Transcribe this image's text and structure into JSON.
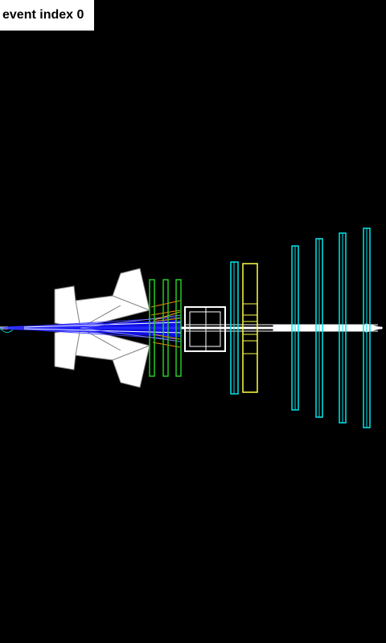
{
  "event_label": "event index 0",
  "colors": {
    "background": "#000000",
    "magnet": "#ffffff",
    "tracks_primary": "#1010ff",
    "tracks_secondary": "#ffffff",
    "trd_station": "#22cc22",
    "rich_detector": "#ffffff",
    "tof_wall": "#00e5ee",
    "ecal": "#ffff44",
    "muon_station": "#00e5ee",
    "hits": "#ff8800",
    "beam_pipe": "#ffffff"
  }
}
